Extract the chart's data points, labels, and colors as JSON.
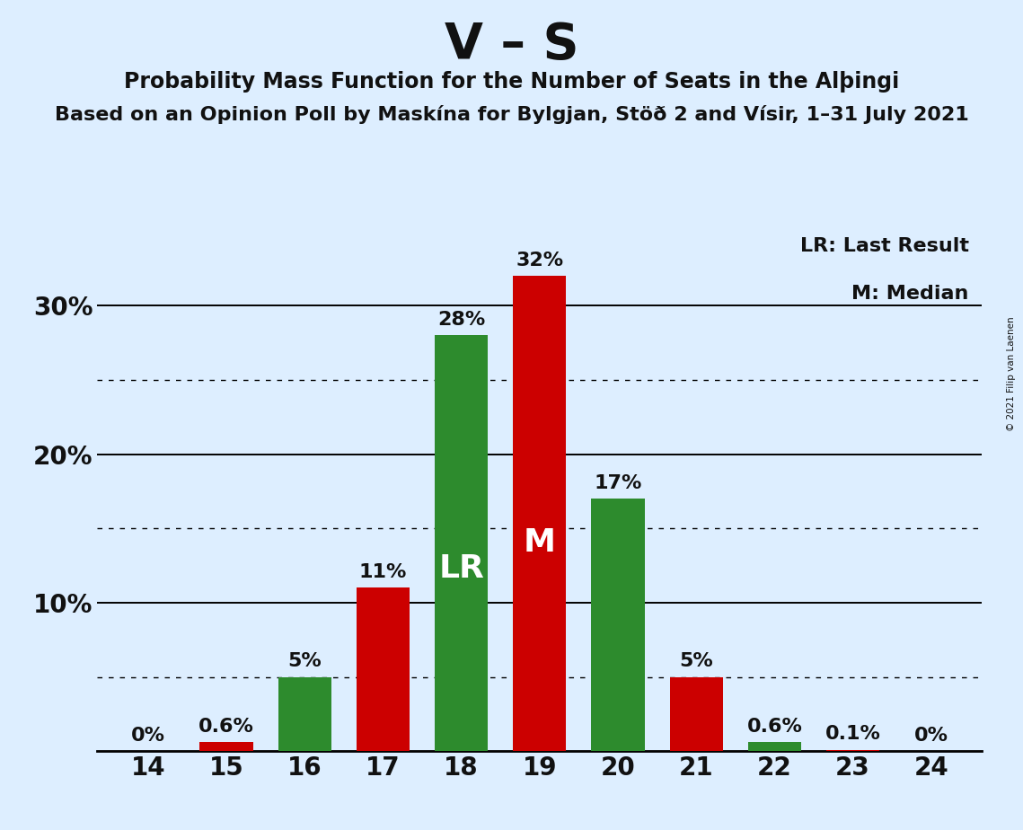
{
  "title": "V – S",
  "subtitle1": "Probability Mass Function for the Number of Seats in the Alþingi",
  "subtitle2": "Based on an Opinion Poll by Maskína for Bylgjan, Stöð 2 and Vísir, 1–31 July 2021",
  "copyright": "© 2021 Filip van Laenen",
  "seats": [
    14,
    15,
    16,
    17,
    18,
    19,
    20,
    21,
    22,
    23,
    24
  ],
  "values": [
    0.001,
    0.6,
    5.0,
    11.0,
    28.0,
    32.0,
    17.0,
    5.0,
    0.6,
    0.1,
    0.001
  ],
  "colors": [
    "#cc0000",
    "#cc0000",
    "#2d8b2d",
    "#cc0000",
    "#2d8b2d",
    "#cc0000",
    "#2d8b2d",
    "#cc0000",
    "#2d8b2d",
    "#cc0000",
    "#cc0000"
  ],
  "pct_labels": [
    "0%",
    "0.6%",
    "5%",
    "11%",
    "28%",
    "32%",
    "17%",
    "5%",
    "0.6%",
    "0.1%",
    "0%"
  ],
  "bar_inner_labels": [
    null,
    null,
    null,
    null,
    "LR",
    "M",
    null,
    null,
    null,
    null,
    null
  ],
  "solid_gridlines": [
    10,
    20,
    30
  ],
  "dotted_gridlines": [
    5,
    15,
    25
  ],
  "background_color": "#ddeeff",
  "legend_lr": "LR: Last Result",
  "legend_m": "M: Median",
  "ylim_max": 35.5,
  "bar_width": 0.68
}
